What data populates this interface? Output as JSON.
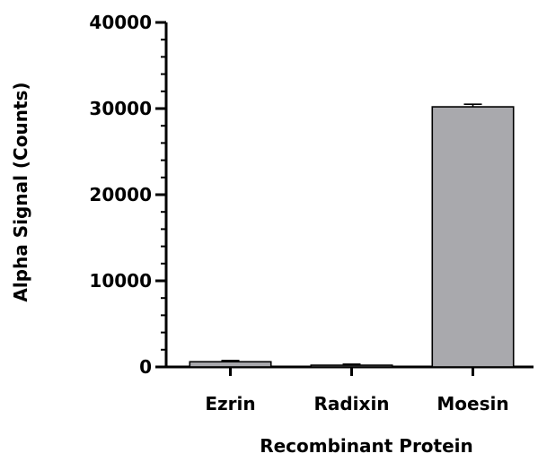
{
  "chart_data": {
    "type": "bar",
    "title": "",
    "xlabel": "Recombinant Protein",
    "ylabel": "Alpha Signal (Counts)",
    "categories": [
      "Ezrin",
      "Radixin",
      "Moesin"
    ],
    "values": [
      600,
      200,
      30200
    ],
    "errors": [
      150,
      120,
      300
    ],
    "ylim": [
      0,
      40000
    ],
    "yticks": [
      0,
      10000,
      20000,
      30000,
      40000
    ],
    "minor_ticks_per_major": 5,
    "grid": false,
    "legend": "none",
    "colors": {
      "bar_fill": "#a9a9ad",
      "bar_stroke": "#000000",
      "axis": "#000000"
    }
  }
}
